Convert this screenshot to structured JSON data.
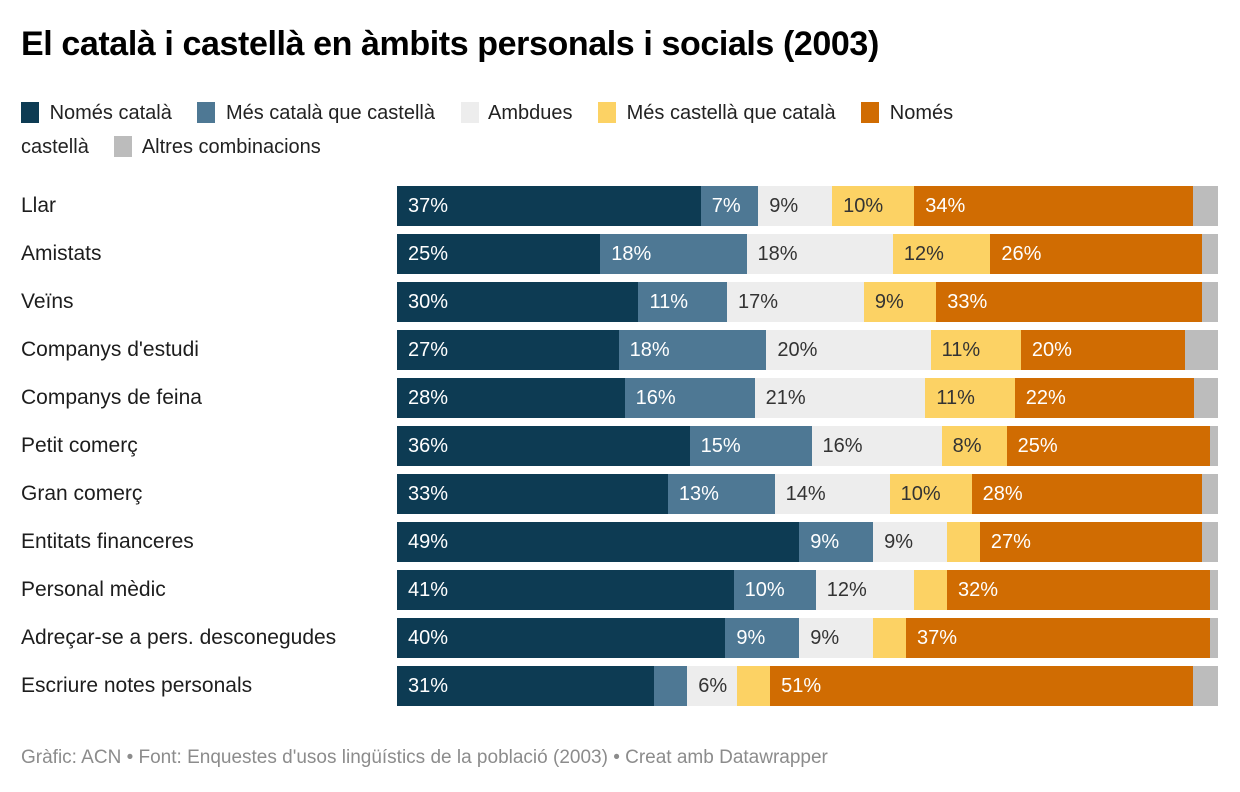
{
  "title": "El català i castellà en àmbits personals i socials (2003)",
  "footer": "Gràfic: ACN • Font: Enquestes d'usos lingüístics de la població (2003) • Creat amb Datawrapper",
  "colors": {
    "nomes_catala": "#0d3b53",
    "mes_catala_que_castella": "#4e7894",
    "ambdues": "#ededed",
    "mes_castella_que_catala": "#fcd264",
    "nomes_castella": "#d06c02",
    "altres_combinacions": "#bcbcbc",
    "label_on_dark": "#ffffff",
    "label_on_light": "#333333"
  },
  "legend": {
    "items": [
      {
        "label": "Només català",
        "color": "#0d3b53"
      },
      {
        "label": "Més català que castellà",
        "color": "#4e7894"
      },
      {
        "label": "Ambdues",
        "color": "#ededed"
      },
      {
        "label": "Més castellà que català",
        "color": "#fcd264"
      },
      {
        "label": "Només castellà",
        "color": "#d06c02"
      },
      {
        "label": "Altres combinacions",
        "color": "#bcbcbc"
      }
    ]
  },
  "chart_data": {
    "type": "bar",
    "stacked": true,
    "orientation": "horizontal",
    "unit": "%",
    "x_range": [
      0,
      100
    ],
    "grid": false,
    "legend_position": "top",
    "value_labels": "inside-left, shown only when segment is 6% or wider",
    "categories": [
      "Llar",
      "Amistats",
      "Veïns",
      "Companys d'estudi",
      "Companys de feina",
      "Petit comerç",
      "Gran comerç",
      "Entitats financeres",
      "Personal mèdic",
      "Adreçar-se a pers. desconegudes",
      "Escriure notes personals"
    ],
    "series": [
      {
        "name": "Només català",
        "color": "#0d3b53",
        "text_color": "#ffffff",
        "values": [
          37,
          25,
          30,
          27,
          28,
          36,
          33,
          49,
          41,
          40,
          31
        ]
      },
      {
        "name": "Més català que castellà",
        "color": "#4e7894",
        "text_color": "#ffffff",
        "values": [
          7,
          18,
          11,
          18,
          16,
          15,
          13,
          9,
          10,
          9,
          4
        ]
      },
      {
        "name": "Ambdues",
        "color": "#ededed",
        "text_color": "#333333",
        "values": [
          9,
          18,
          17,
          20,
          21,
          16,
          14,
          9,
          12,
          9,
          6
        ]
      },
      {
        "name": "Més castellà que català",
        "color": "#fcd264",
        "text_color": "#333333",
        "values": [
          10,
          12,
          9,
          11,
          11,
          8,
          10,
          4,
          4,
          4,
          4
        ]
      },
      {
        "name": "Només castellà",
        "color": "#d06c02",
        "text_color": "#ffffff",
        "values": [
          34,
          26,
          33,
          20,
          22,
          25,
          28,
          27,
          32,
          37,
          51
        ]
      },
      {
        "name": "Altres combinacions",
        "color": "#bcbcbc",
        "text_color": "#333333",
        "values": [
          3,
          2,
          2,
          4,
          3,
          1,
          2,
          2,
          1,
          1,
          3
        ]
      }
    ]
  }
}
